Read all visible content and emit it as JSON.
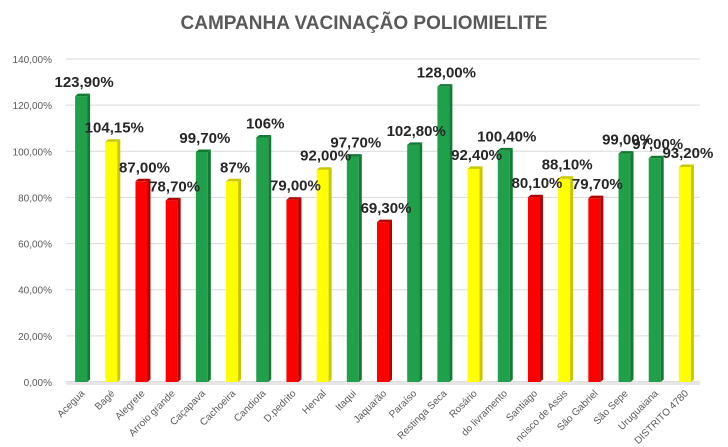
{
  "chart_data": {
    "type": "bar",
    "title": "CAMPANHA VACINAÇÃO POLIOMIELITE",
    "xlabel": "",
    "ylabel": "",
    "ylim": [
      0,
      140
    ],
    "grid": true,
    "yticks": [
      "0,00%",
      "20,00%",
      "40,00%",
      "60,00%",
      "80,00%",
      "100,00%",
      "120,00%",
      "140,00%"
    ],
    "categories": [
      "Acegua",
      "Bagé",
      "Alegrete",
      "Arroio grande",
      "Caçapava",
      "Cachoeira",
      "Candiota",
      "D.pedrito",
      "Herval",
      "Itaqui",
      "Jaquarão",
      "Paraíso",
      "Restinga Seca",
      "Rosário",
      "do livramento",
      "Santiago",
      "ncisco de Assis",
      "São Gabriel",
      "São Sepe",
      "Uruguaiana",
      "DISTRITO 4780"
    ],
    "values": [
      123.9,
      104.15,
      87.0,
      78.7,
      99.7,
      87.0,
      106.0,
      79.0,
      92.0,
      97.7,
      69.3,
      102.8,
      128.0,
      92.4,
      100.4,
      80.1,
      88.1,
      79.7,
      99.0,
      97.0,
      93.2
    ],
    "labels": [
      "123,90%",
      "104,15%",
      "87,00%",
      "78,70%",
      "99,70%",
      "87%",
      "106%",
      "79,00%",
      "92,00%",
      "97,70%",
      "69,30%",
      "102,80%",
      "128,00%",
      "92,40%",
      "100,40%",
      "80,10%",
      "88,10%",
      "79,70%",
      "99,00%",
      "97,00%",
      "93,20%"
    ],
    "colors": [
      "green",
      "yellow",
      "red",
      "red",
      "green",
      "yellow",
      "green",
      "red",
      "yellow",
      "green",
      "red",
      "green",
      "green",
      "yellow",
      "green",
      "red",
      "yellow",
      "red",
      "green",
      "green",
      "yellow"
    ],
    "palette": {
      "green": "#21a04b",
      "yellow": "#ffff00",
      "red": "#ff0000"
    },
    "dark_palette": {
      "green": "#137a33",
      "yellow": "#c8c800",
      "red": "#b30000"
    }
  }
}
